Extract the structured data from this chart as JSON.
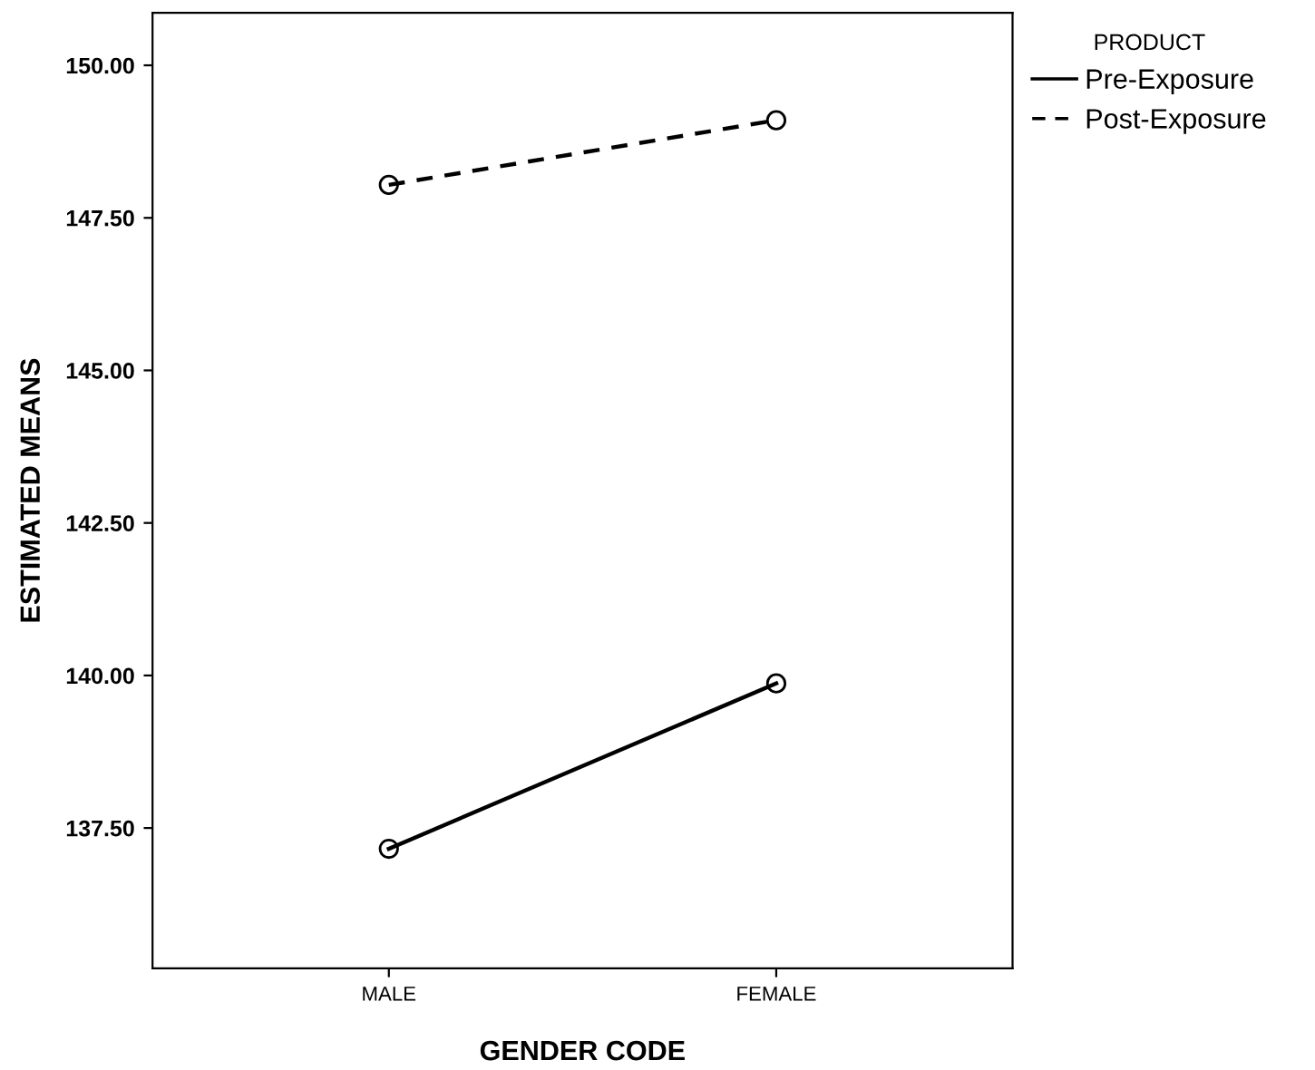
{
  "chart_data": {
    "type": "line",
    "xlabel": "GENDER CODE",
    "ylabel": "ESTIMATED MEANS",
    "legend_title": "PRODUCT",
    "categories": [
      "MALE",
      "FEMALE"
    ],
    "series": [
      {
        "name": "Pre-Exposure",
        "color": "#000000",
        "values": [
          137.16,
          139.87
        ],
        "line_style": "solid"
      },
      {
        "name": "Post-Exposure",
        "color": "#000000",
        "values": [
          148.04,
          149.1
        ],
        "line_style": "dashed"
      }
    ],
    "ylim": [
      135.2,
      150.86
    ],
    "yticks": [
      {
        "value": 137.5,
        "label": "137.50"
      },
      {
        "value": 140,
        "label": "140.00"
      },
      {
        "value": 142.5,
        "label": "142.50"
      },
      {
        "value": 145,
        "label": "145.00"
      },
      {
        "value": 147.5,
        "label": "147.50"
      },
      {
        "value": 150,
        "label": "150.00"
      }
    ],
    "grid": false,
    "legend": "top right",
    "marker": "circle"
  }
}
